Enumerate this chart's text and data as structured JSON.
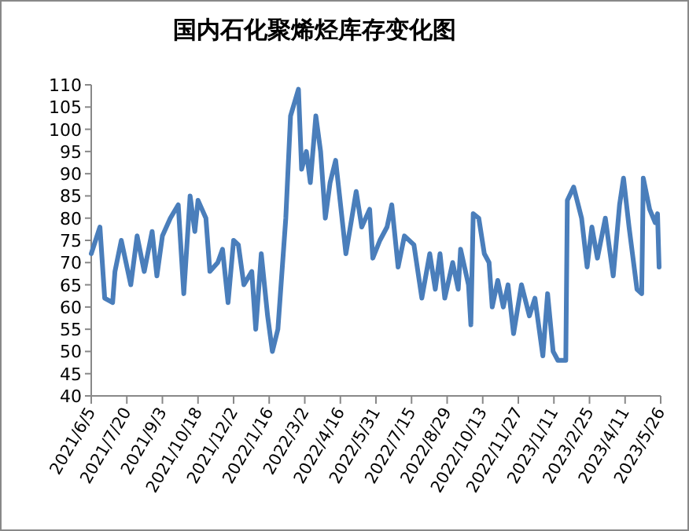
{
  "chart_data": {
    "type": "line",
    "title": "国内石化聚烯烃库存变化图",
    "color": "#4a7ebb",
    "x": [
      "2021-06-05",
      "2021-06-16",
      "2021-06-22",
      "2021-07-02",
      "2021-07-05",
      "2021-07-13",
      "2021-07-19",
      "2021-07-25",
      "2021-08-02",
      "2021-08-11",
      "2021-08-21",
      "2021-08-27",
      "2021-09-03",
      "2021-09-13",
      "2021-09-23",
      "2021-09-30",
      "2021-10-08",
      "2021-10-14",
      "2021-10-18",
      "2021-10-28",
      "2021-11-02",
      "2021-11-12",
      "2021-11-18",
      "2021-11-25",
      "2021-12-02",
      "2021-12-08",
      "2021-12-15",
      "2021-12-25",
      "2021-12-30",
      "2022-01-06",
      "2022-01-14",
      "2022-01-20",
      "2022-01-27",
      "2022-02-06",
      "2022-02-12",
      "2022-02-22",
      "2022-02-26",
      "2022-03-04",
      "2022-03-09",
      "2022-03-16",
      "2022-03-22",
      "2022-03-28",
      "2022-04-03",
      "2022-04-10",
      "2022-04-15",
      "2022-04-23",
      "2022-05-06",
      "2022-05-13",
      "2022-05-23",
      "2022-05-27",
      "2022-06-05",
      "2022-06-14",
      "2022-06-20",
      "2022-06-28",
      "2022-07-06",
      "2022-07-18",
      "2022-07-28",
      "2022-08-07",
      "2022-08-14",
      "2022-08-20",
      "2022-08-26",
      "2022-09-05",
      "2022-09-12",
      "2022-09-15",
      "2022-09-25",
      "2022-09-28",
      "2022-10-01",
      "2022-10-08",
      "2022-10-15",
      "2022-10-21",
      "2022-10-25",
      "2022-11-01",
      "2022-11-08",
      "2022-11-14",
      "2022-11-21",
      "2022-12-01",
      "2022-12-11",
      "2022-12-18",
      "2022-12-28",
      "2023-01-03",
      "2023-01-10",
      "2023-01-16",
      "2023-01-26",
      "2023-01-28",
      "2023-02-05",
      "2023-02-15",
      "2023-02-22",
      "2023-02-28",
      "2023-03-07",
      "2023-03-17",
      "2023-03-27",
      "2023-04-04",
      "2023-04-09",
      "2023-04-16",
      "2023-04-26",
      "2023-05-02",
      "2023-05-04",
      "2023-05-12",
      "2023-05-19",
      "2023-05-22",
      "2023-05-24"
    ],
    "values": [
      72,
      78,
      62,
      61,
      68,
      75,
      70,
      65,
      76,
      68,
      77,
      67,
      76,
      80,
      83,
      63,
      85,
      77,
      84,
      80,
      68,
      70,
      73,
      61,
      75,
      74,
      65,
      68,
      55,
      72,
      58,
      50,
      55,
      80,
      103,
      109,
      91,
      95,
      88,
      103,
      95,
      80,
      88,
      93,
      85,
      72,
      86,
      78,
      82,
      71,
      75,
      78,
      83,
      69,
      76,
      74,
      62,
      72,
      64,
      72,
      62,
      70,
      64,
      73,
      65,
      56,
      81,
      80,
      72,
      70,
      60,
      66,
      60,
      65,
      54,
      65,
      58,
      62,
      49,
      63,
      50,
      48,
      48,
      84,
      87,
      80,
      69,
      78,
      71,
      80,
      67,
      83,
      89,
      78,
      64,
      63,
      89,
      82,
      79,
      81,
      69
    ],
    "xlim": [
      "2021-06-05",
      "2023-05-26"
    ],
    "xticks": [
      {
        "value": "2021-06-05",
        "label": "2021/6/5"
      },
      {
        "value": "2021-07-20",
        "label": "2021/7/20"
      },
      {
        "value": "2021-09-03",
        "label": "2021/9/3"
      },
      {
        "value": "2021-10-18",
        "label": "2021/10/18"
      },
      {
        "value": "2021-12-02",
        "label": "2021/12/2"
      },
      {
        "value": "2022-01-16",
        "label": "2022/1/16"
      },
      {
        "value": "2022-03-02",
        "label": "2022/3/2"
      },
      {
        "value": "2022-04-16",
        "label": "2022/4/16"
      },
      {
        "value": "2022-05-31",
        "label": "2022/5/31"
      },
      {
        "value": "2022-07-15",
        "label": "2022/7/15"
      },
      {
        "value": "2022-08-29",
        "label": "2022/8/29"
      },
      {
        "value": "2022-10-13",
        "label": "2022/10/13"
      },
      {
        "value": "2022-11-27",
        "label": "2022/11/27"
      },
      {
        "value": "2023-01-11",
        "label": "2023/1/11"
      },
      {
        "value": "2023-02-25",
        "label": "2023/2/25"
      },
      {
        "value": "2023-04-11",
        "label": "2023/4/11"
      },
      {
        "value": "2023-05-26",
        "label": "2023/5/26"
      }
    ],
    "ylim": [
      40,
      110
    ],
    "yticks": [
      40,
      45,
      50,
      55,
      60,
      65,
      70,
      75,
      80,
      85,
      90,
      95,
      100,
      105,
      110
    ]
  }
}
